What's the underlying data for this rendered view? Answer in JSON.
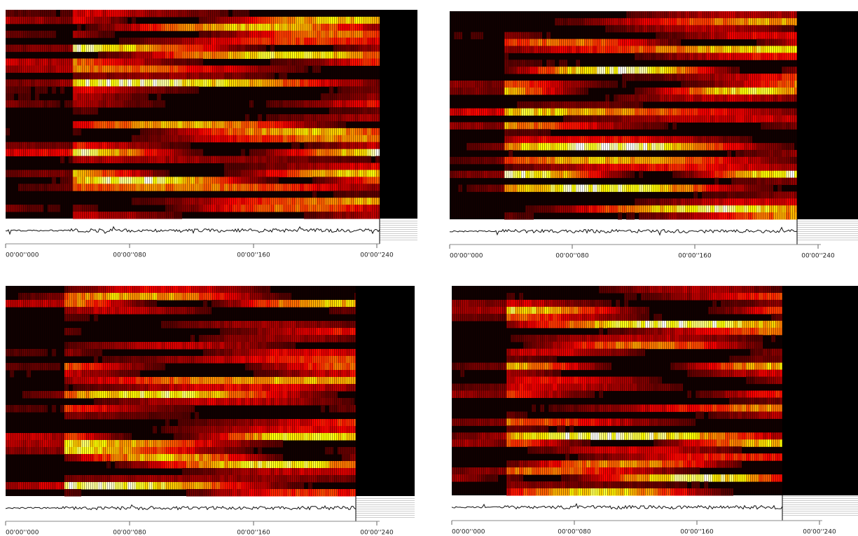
{
  "panels": [
    {
      "ticks": [
        "00'00''000",
        "00'00''080",
        "00'00''160",
        "00'00''240"
      ]
    },
    {
      "ticks": [
        "00'00''000",
        "00'00''080",
        "00'00''160",
        "00'00''240"
      ]
    },
    {
      "ticks": [
        "00'00''000",
        "00'00''080",
        "00'00''160",
        "00'00''240"
      ]
    },
    {
      "ticks": [
        "00'00''000",
        "00'00''080",
        "00'00''160",
        "00'00''240"
      ]
    }
  ]
}
